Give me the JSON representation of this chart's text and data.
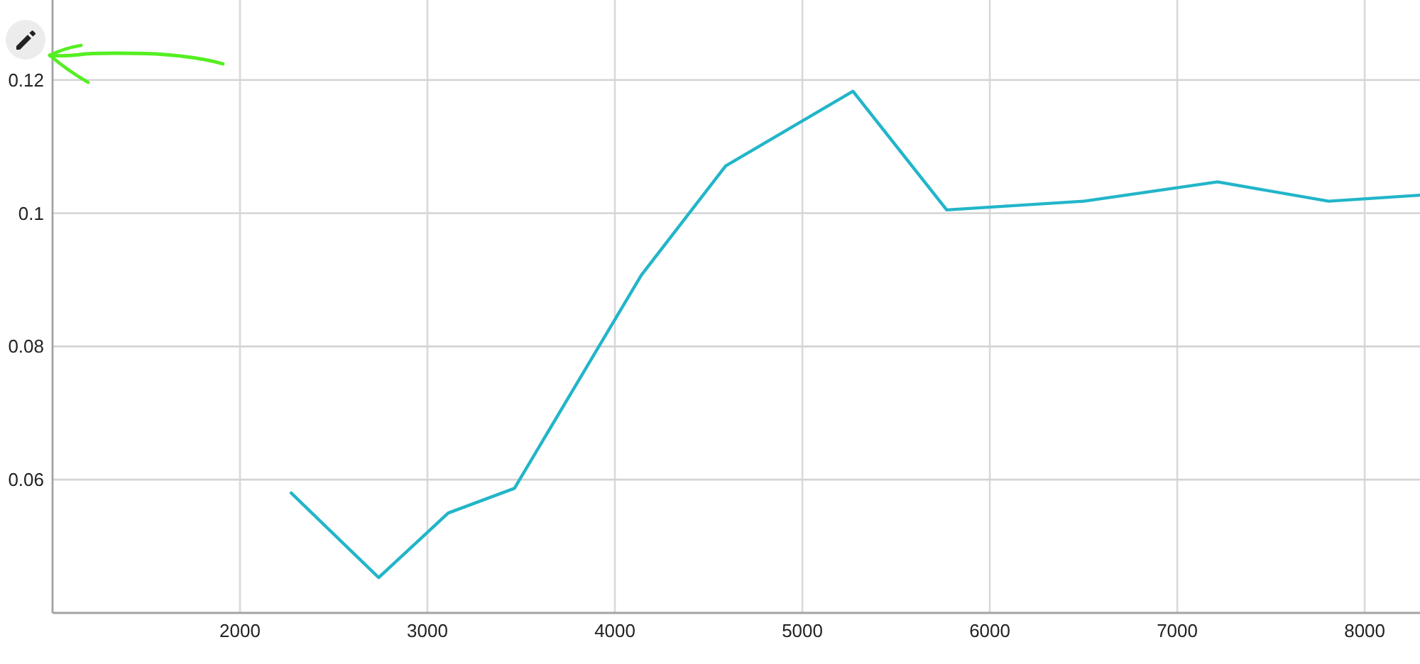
{
  "chart_data": {
    "type": "line",
    "x": [
      2273,
      2740,
      3111,
      3464,
      4141,
      4591,
      5270,
      5770,
      6502,
      7215,
      7808,
      8295
    ],
    "series": [
      {
        "color": "#22b5c9",
        "values": [
          0.058,
          0.0453,
          0.055,
          0.0587,
          0.0907,
          0.1071,
          0.1183,
          0.1005,
          0.1018,
          0.1047,
          0.1018,
          0.1027
        ]
      }
    ],
    "xlim": [
      1000,
      8295
    ],
    "ylim": [
      0.04,
      0.132
    ],
    "xticks": [
      2000,
      3000,
      4000,
      5000,
      6000,
      7000,
      8000
    ],
    "yticks": [
      0.06,
      0.08,
      0.1,
      0.12
    ],
    "grid": true
  }
}
